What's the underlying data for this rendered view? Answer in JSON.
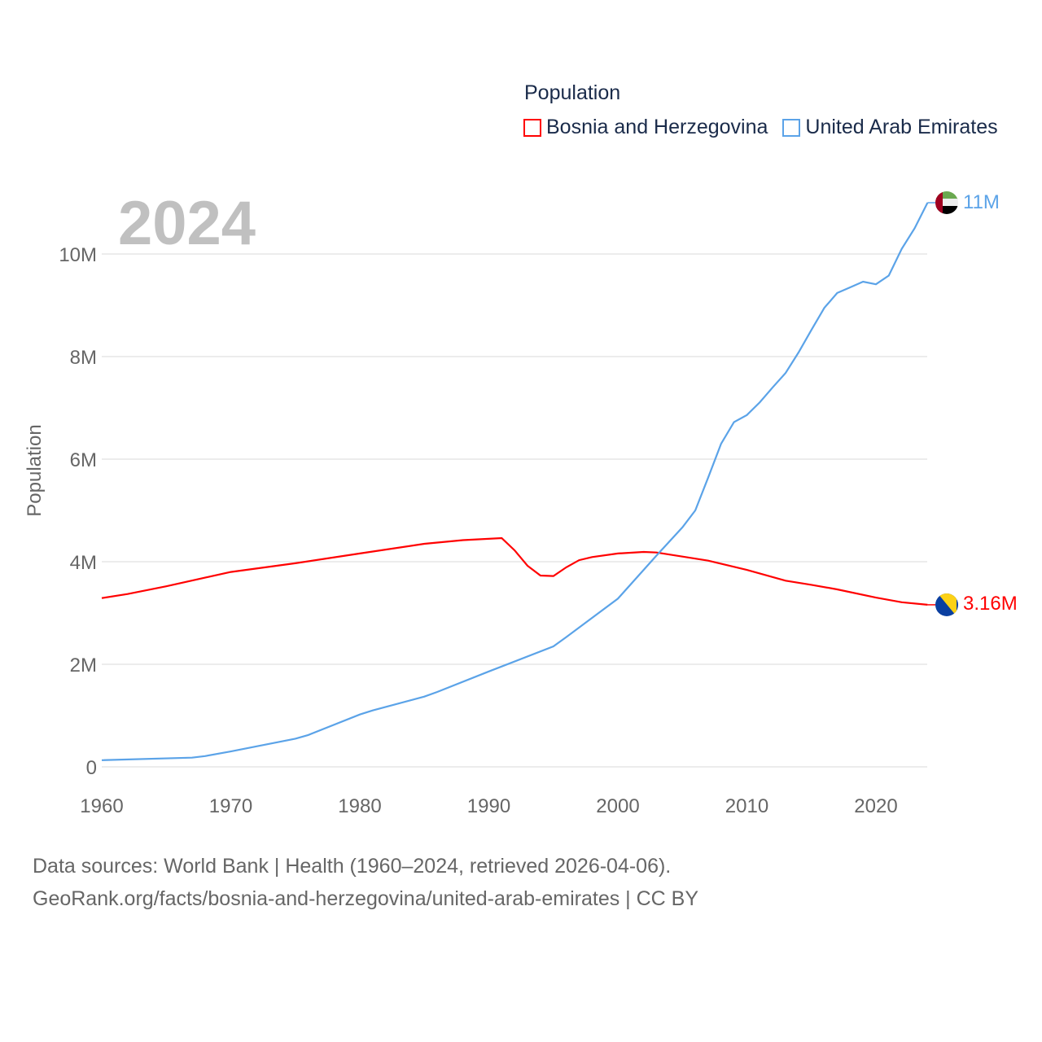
{
  "chart_data": {
    "type": "line",
    "title": "Population",
    "year_label": "2024",
    "xlabel": "",
    "ylabel": "Population",
    "xlim": [
      1960,
      2024
    ],
    "ylim": [
      0,
      11
    ],
    "y_unit": "millions",
    "grid": true,
    "legend_position": "top-right",
    "x_ticks": [
      "1960",
      "1970",
      "1980",
      "1990",
      "2000",
      "2010",
      "2020"
    ],
    "y_ticks": [
      {
        "v": 0,
        "label": "0"
      },
      {
        "v": 2,
        "label": "2M"
      },
      {
        "v": 4,
        "label": "4M"
      },
      {
        "v": 6,
        "label": "6M"
      },
      {
        "v": 8,
        "label": "8M"
      },
      {
        "v": 10,
        "label": "10M"
      }
    ],
    "series": [
      {
        "name": "Bosnia and Herzegovina",
        "color": "#ff0000",
        "end_label": "3.16M",
        "flag": "bosnia-flag",
        "points": [
          [
            1960,
            3.29
          ],
          [
            1962,
            3.37
          ],
          [
            1965,
            3.52
          ],
          [
            1970,
            3.8
          ],
          [
            1975,
            3.97
          ],
          [
            1980,
            4.16
          ],
          [
            1985,
            4.35
          ],
          [
            1988,
            4.42
          ],
          [
            1991,
            4.46
          ],
          [
            1992,
            4.22
          ],
          [
            1993,
            3.92
          ],
          [
            1994,
            3.73
          ],
          [
            1995,
            3.72
          ],
          [
            1996,
            3.89
          ],
          [
            1997,
            4.03
          ],
          [
            1998,
            4.09
          ],
          [
            2000,
            4.16
          ],
          [
            2002,
            4.19
          ],
          [
            2003,
            4.18
          ],
          [
            2005,
            4.1
          ],
          [
            2007,
            4.02
          ],
          [
            2010,
            3.84
          ],
          [
            2013,
            3.63
          ],
          [
            2015,
            3.55
          ],
          [
            2017,
            3.46
          ],
          [
            2020,
            3.3
          ],
          [
            2022,
            3.21
          ],
          [
            2024,
            3.16
          ]
        ]
      },
      {
        "name": "United Arab Emirates",
        "color": "#5ba3e8",
        "end_label": "11M",
        "flag": "uae-flag",
        "points": [
          [
            1960,
            0.13
          ],
          [
            1967,
            0.18
          ],
          [
            1968,
            0.21
          ],
          [
            1970,
            0.3
          ],
          [
            1975,
            0.55
          ],
          [
            1976,
            0.62
          ],
          [
            1980,
            1.02
          ],
          [
            1981,
            1.1
          ],
          [
            1985,
            1.37
          ],
          [
            1986,
            1.46
          ],
          [
            1990,
            1.86
          ],
          [
            1995,
            2.35
          ],
          [
            1996,
            2.53
          ],
          [
            2000,
            3.28
          ],
          [
            2003,
            4.12
          ],
          [
            2005,
            4.67
          ],
          [
            2006,
            5.0
          ],
          [
            2007,
            5.64
          ],
          [
            2008,
            6.3
          ],
          [
            2009,
            6.72
          ],
          [
            2010,
            6.86
          ],
          [
            2011,
            7.11
          ],
          [
            2012,
            7.4
          ],
          [
            2013,
            7.68
          ],
          [
            2014,
            8.08
          ],
          [
            2015,
            8.52
          ],
          [
            2016,
            8.95
          ],
          [
            2017,
            9.24
          ],
          [
            2018,
            9.35
          ],
          [
            2019,
            9.46
          ],
          [
            2020,
            9.41
          ],
          [
            2021,
            9.58
          ],
          [
            2022,
            10.1
          ],
          [
            2023,
            10.5
          ],
          [
            2024,
            11.0
          ]
        ]
      }
    ]
  },
  "source": {
    "line1": "Data sources: World Bank | Health (1960–2024, retrieved 2026-04-06).",
    "line2": "GeoRank.org/facts/bosnia-and-herzegovina/united-arab-emirates | CC BY"
  }
}
